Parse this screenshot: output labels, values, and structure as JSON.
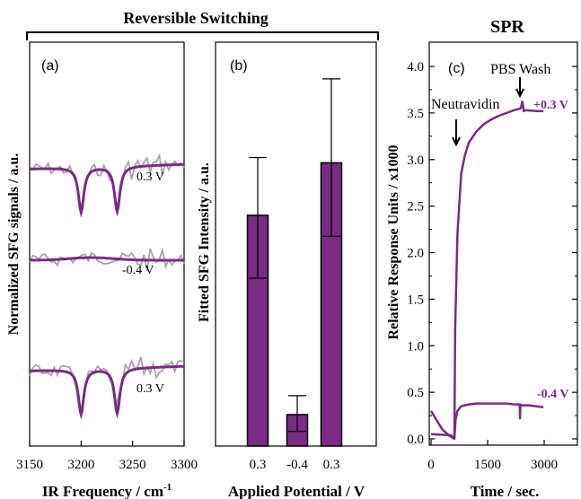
{
  "header": {
    "group_title": "Reversible Switching",
    "spr_title": "SPR"
  },
  "colors": {
    "purple": "#7b2a86",
    "noisy": "#a6a6a6",
    "axis": "#000000"
  },
  "chart_data": [
    {
      "panel": "(a)",
      "type": "line",
      "xlabel": "IR Frequency / cm",
      "xlabel_sup": "-1",
      "ylabel": "Normalized SFG signals / a.u.",
      "xlim": [
        3150,
        3300
      ],
      "x_ticks": [
        "3150",
        "3200",
        "3250",
        "3300"
      ],
      "y_ticks": [],
      "dips_at": [
        3200,
        3235
      ],
      "traces": [
        {
          "label": "0.3 V",
          "dips": true,
          "baseline_fraction": 0.3
        },
        {
          "label": "-0.4 V",
          "dips": false,
          "baseline_fraction": 0.54
        },
        {
          "label": "0.3 V",
          "dips": true,
          "baseline_fraction": 0.8
        }
      ],
      "series": [
        {
          "style": "gray noisy raw signal"
        },
        {
          "style": "purple fitted curve"
        }
      ]
    },
    {
      "panel": "(b)",
      "type": "bar",
      "xlabel": "Applied Potential / V",
      "ylabel": "Fitted SFG Intensity / a.u.",
      "categories": [
        "0.3",
        "-0.4",
        "0.3"
      ],
      "values": [
        2.2,
        0.3,
        2.7
      ],
      "error_low": [
        1.6,
        0.14,
        2.0
      ],
      "error_high": [
        2.75,
        0.48,
        3.5
      ],
      "ylim": [
        0,
        3.85
      ]
    },
    {
      "panel": "(c)",
      "type": "line",
      "title": "SPR",
      "xlabel": "Time / sec.",
      "ylabel": "Relative Response Units / x1000",
      "xlim": [
        0,
        3000
      ],
      "ylim": [
        -0.05,
        4.25
      ],
      "x_ticks": [
        "0",
        "1500",
        "3000"
      ],
      "y_ticks": [
        "0.0",
        "0.5",
        "1.0",
        "1.5",
        "2.0",
        "2.5",
        "3.0",
        "3.5",
        "4.0"
      ],
      "annotations": [
        {
          "text": "PBS Wash",
          "x": 2430
        },
        {
          "text": "Neutravidin",
          "x": 640
        },
        {
          "text": "+0.3 V",
          "x": 2900
        },
        {
          "text": "-0.4 V",
          "x": 2900
        }
      ],
      "series": [
        {
          "name": "+0.3 V",
          "x": [
            0,
            500,
            620,
            640,
            700,
            800,
            900,
            1000,
            1200,
            1400,
            1600,
            1800,
            2000,
            2200,
            2380,
            2420,
            2440,
            2460,
            2500,
            2800,
            2980
          ],
          "y": [
            0.05,
            0.04,
            0.02,
            1.2,
            2.2,
            2.85,
            3.05,
            3.18,
            3.3,
            3.38,
            3.43,
            3.47,
            3.5,
            3.53,
            3.55,
            3.62,
            3.58,
            3.52,
            3.53,
            3.52,
            3.52
          ]
        },
        {
          "name": "-0.4 V",
          "x": [
            0,
            150,
            300,
            500,
            620,
            650,
            700,
            800,
            1000,
            1200,
            1400,
            1600,
            1800,
            2000,
            2200,
            2350,
            2360,
            2370,
            2380,
            2600,
            2800,
            2980
          ],
          "y": [
            0.3,
            0.2,
            0.1,
            0.03,
            0.0,
            0.2,
            0.3,
            0.35,
            0.37,
            0.38,
            0.38,
            0.38,
            0.38,
            0.38,
            0.37,
            0.37,
            0.22,
            0.37,
            0.36,
            0.36,
            0.35,
            0.34
          ]
        }
      ]
    }
  ]
}
